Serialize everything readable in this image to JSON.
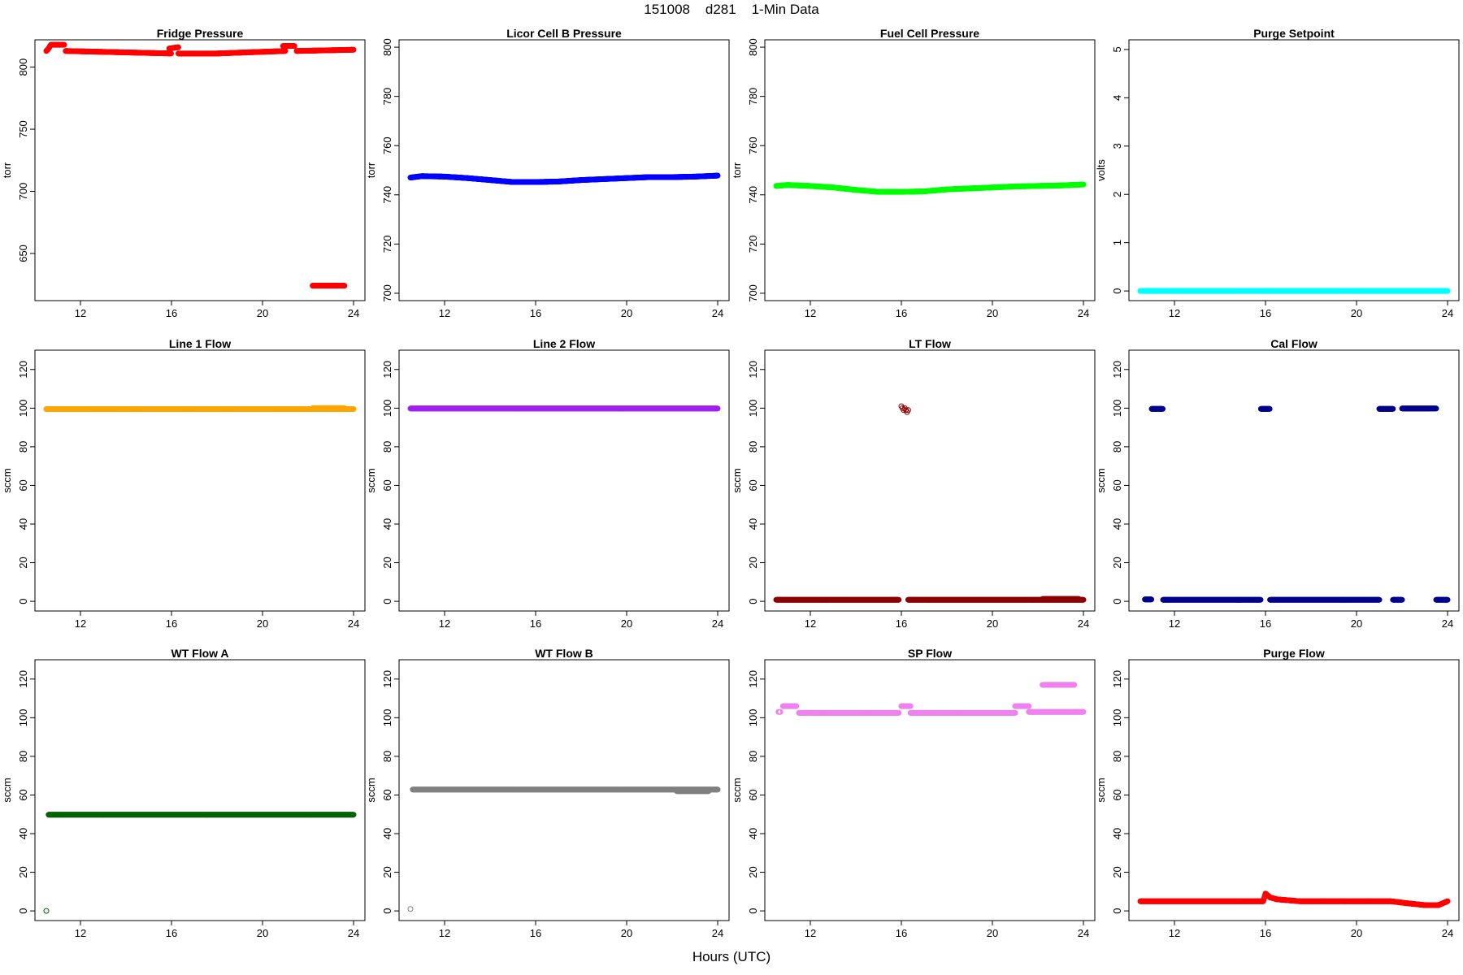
{
  "figure": {
    "title": "151008    d281    1-Min Data",
    "xlabel": "Hours (UTC)"
  },
  "chart_data": [
    {
      "type": "scatter",
      "title": "Fridge Pressure",
      "ylabel": "torr",
      "color": "#ff0000",
      "xlim": [
        10,
        24.5
      ],
      "ylim": [
        612,
        822
      ],
      "xticks": [
        12,
        16,
        20,
        24
      ],
      "yticks": [
        650,
        700,
        750,
        800
      ],
      "segments": [
        {
          "x": [
            10.5,
            10.6,
            10.7,
            10.8,
            10.9,
            11.0,
            11.1,
            11.2,
            11.3
          ],
          "y": [
            813,
            815,
            818,
            818,
            818,
            818,
            818,
            818,
            818
          ]
        },
        {
          "x": [
            11.35,
            16.0
          ],
          "y": [
            813,
            811
          ]
        },
        {
          "x": [
            15.9,
            16.3
          ],
          "y": [
            815,
            816
          ]
        },
        {
          "x": [
            16.3,
            18.0,
            21.0
          ],
          "y": [
            811,
            811,
            813
          ]
        },
        {
          "x": [
            20.9,
            21.4
          ],
          "y": [
            817,
            817
          ]
        },
        {
          "x": [
            21.5,
            24.0
          ],
          "y": [
            813,
            814
          ]
        },
        {
          "x": [
            22.2,
            23.6
          ],
          "y": [
            624,
            624
          ]
        }
      ]
    },
    {
      "type": "scatter",
      "title": "Licor Cell B Pressure",
      "ylabel": "torr",
      "color": "#0000ff",
      "xlim": [
        10,
        24.5
      ],
      "ylim": [
        697,
        803
      ],
      "xticks": [
        12,
        16,
        20,
        24
      ],
      "yticks": [
        700,
        720,
        740,
        760,
        780,
        800
      ],
      "segments": [
        {
          "x": [
            10.5,
            11.0,
            12.0,
            13.0,
            14.0,
            15.0,
            16.0,
            17.0,
            18.0,
            19.0,
            20.0,
            21.0,
            22.0,
            23.0,
            24.0
          ],
          "y": [
            747.0,
            747.6,
            747.4,
            746.8,
            746.0,
            745.2,
            745.2,
            745.4,
            746.0,
            746.4,
            746.8,
            747.2,
            747.2,
            747.4,
            747.8
          ]
        }
      ]
    },
    {
      "type": "scatter",
      "title": "Fuel Cell Pressure",
      "ylabel": "torr",
      "color": "#00ff00",
      "xlim": [
        10,
        24.5
      ],
      "ylim": [
        697,
        803
      ],
      "xticks": [
        12,
        16,
        20,
        24
      ],
      "yticks": [
        700,
        720,
        740,
        760,
        780,
        800
      ],
      "segments": [
        {
          "x": [
            10.5,
            11.0,
            12.0,
            13.0,
            14.0,
            15.0,
            16.0,
            17.0,
            18.0,
            19.0,
            20.0,
            21.0,
            22.0,
            23.0,
            24.0
          ],
          "y": [
            743.6,
            744.0,
            743.6,
            743.0,
            742.0,
            741.2,
            741.2,
            741.4,
            742.2,
            742.6,
            743.0,
            743.4,
            743.6,
            743.8,
            744.2
          ]
        }
      ]
    },
    {
      "type": "scatter",
      "title": "Purge Setpoint",
      "ylabel": "volts",
      "color": "#00ffff",
      "xlim": [
        10,
        24.5
      ],
      "ylim": [
        -0.2,
        5.2
      ],
      "xticks": [
        12,
        16,
        20,
        24
      ],
      "yticks": [
        0,
        1,
        2,
        3,
        4,
        5
      ],
      "segments": [
        {
          "x": [
            10.5,
            24.0
          ],
          "y": [
            0,
            0
          ]
        }
      ]
    },
    {
      "type": "scatter",
      "title": "Line 1 Flow",
      "ylabel": "sccm",
      "color": "#ffa500",
      "xlim": [
        10,
        24.5
      ],
      "ylim": [
        -5,
        130
      ],
      "xticks": [
        12,
        16,
        20,
        24
      ],
      "yticks": [
        0,
        20,
        40,
        60,
        80,
        100,
        120
      ],
      "segments": [
        {
          "x": [
            10.5,
            24.0
          ],
          "y": [
            99.5,
            99.5
          ]
        },
        {
          "x": [
            22.2,
            23.6
          ],
          "y": [
            100,
            100
          ]
        }
      ]
    },
    {
      "type": "scatter",
      "title": "Line 2 Flow",
      "ylabel": "sccm",
      "color": "#a020f0",
      "xlim": [
        10,
        24.5
      ],
      "ylim": [
        -5,
        130
      ],
      "xticks": [
        12,
        16,
        20,
        24
      ],
      "yticks": [
        0,
        20,
        40,
        60,
        80,
        100,
        120
      ],
      "segments": [
        {
          "x": [
            10.5,
            24.0
          ],
          "y": [
            99.8,
            99.8
          ]
        }
      ]
    },
    {
      "type": "scatter",
      "title": "LT Flow",
      "ylabel": "sccm",
      "color": "#8b0000",
      "xlim": [
        10,
        24.5
      ],
      "ylim": [
        -5,
        130
      ],
      "xticks": [
        12,
        16,
        20,
        24
      ],
      "yticks": [
        0,
        20,
        40,
        60,
        80,
        100,
        120
      ],
      "segments": [
        {
          "x": [
            10.5,
            15.9
          ],
          "y": [
            0.8,
            0.8
          ]
        },
        {
          "x": [
            16.3,
            24.0
          ],
          "y": [
            0.8,
            0.8
          ]
        },
        {
          "x": [
            22.2,
            23.8
          ],
          "y": [
            1.2,
            1.2
          ]
        }
      ],
      "points": {
        "x": [
          16.0,
          16.05,
          16.1,
          16.15,
          16.2,
          16.25,
          16.3
        ],
        "y": [
          101,
          100,
          99,
          100,
          99,
          98,
          99
        ]
      }
    },
    {
      "type": "scatter",
      "title": "Cal Flow",
      "ylabel": "sccm",
      "color": "#00008b",
      "xlim": [
        10,
        24.5
      ],
      "ylim": [
        -5,
        130
      ],
      "xticks": [
        12,
        16,
        20,
        24
      ],
      "yticks": [
        0,
        20,
        40,
        60,
        80,
        100,
        120
      ],
      "segments": [
        {
          "x": [
            10.7,
            11.0
          ],
          "y": [
            1,
            1
          ]
        },
        {
          "x": [
            11.0,
            11.5
          ],
          "y": [
            99.6,
            99.6
          ]
        },
        {
          "x": [
            11.5,
            15.8
          ],
          "y": [
            0.8,
            0.8
          ]
        },
        {
          "x": [
            15.8,
            16.2
          ],
          "y": [
            99.6,
            99.6
          ]
        },
        {
          "x": [
            16.2,
            21.0
          ],
          "y": [
            0.8,
            0.8
          ]
        },
        {
          "x": [
            21.0,
            21.6
          ],
          "y": [
            99.6,
            99.6
          ]
        },
        {
          "x": [
            21.6,
            22.0
          ],
          "y": [
            0.8,
            0.8
          ]
        },
        {
          "x": [
            22.0,
            23.5
          ],
          "y": [
            99.8,
            99.8
          ]
        },
        {
          "x": [
            23.5,
            24.0
          ],
          "y": [
            0.8,
            0.8
          ]
        }
      ]
    },
    {
      "type": "scatter",
      "title": "WT Flow A",
      "ylabel": "sccm",
      "color": "#006400",
      "xlim": [
        10,
        24.5
      ],
      "ylim": [
        -5,
        130
      ],
      "xticks": [
        12,
        16,
        20,
        24
      ],
      "yticks": [
        0,
        20,
        40,
        60,
        80,
        100,
        120
      ],
      "segments": [
        {
          "x": [
            10.6,
            24.0
          ],
          "y": [
            49.8,
            49.8
          ]
        }
      ],
      "points": {
        "x": [
          10.5
        ],
        "y": [
          0
        ]
      }
    },
    {
      "type": "scatter",
      "title": "WT Flow B",
      "ylabel": "sccm",
      "color": "#808080",
      "xlim": [
        10,
        24.5
      ],
      "ylim": [
        -5,
        130
      ],
      "xticks": [
        12,
        16,
        20,
        24
      ],
      "yticks": [
        0,
        20,
        40,
        60,
        80,
        100,
        120
      ],
      "segments": [
        {
          "x": [
            10.6,
            24.0
          ],
          "y": [
            62.8,
            62.8
          ]
        },
        {
          "x": [
            22.2,
            23.6
          ],
          "y": [
            62,
            62
          ]
        }
      ],
      "points": {
        "x": [
          10.5
        ],
        "y": [
          1
        ]
      }
    },
    {
      "type": "scatter",
      "title": "SP Flow",
      "ylabel": "sccm",
      "color": "#ee82ee",
      "xlim": [
        10,
        24.5
      ],
      "ylim": [
        -5,
        130
      ],
      "xticks": [
        12,
        16,
        20,
        24
      ],
      "yticks": [
        0,
        20,
        40,
        60,
        80,
        100,
        120
      ],
      "segments": [
        {
          "x": [
            10.6,
            10.7
          ],
          "y": [
            103,
            103
          ]
        },
        {
          "x": [
            10.8,
            11.4
          ],
          "y": [
            106,
            106
          ]
        },
        {
          "x": [
            11.5,
            15.9
          ],
          "y": [
            102.5,
            102.5
          ]
        },
        {
          "x": [
            16.0,
            16.4
          ],
          "y": [
            106,
            106
          ]
        },
        {
          "x": [
            16.4,
            21.0
          ],
          "y": [
            102.5,
            102.5
          ]
        },
        {
          "x": [
            21.0,
            21.6
          ],
          "y": [
            106,
            106
          ]
        },
        {
          "x": [
            21.6,
            24.0
          ],
          "y": [
            103,
            103
          ]
        },
        {
          "x": [
            22.2,
            23.6
          ],
          "y": [
            117,
            117
          ]
        }
      ]
    },
    {
      "type": "scatter",
      "title": "Purge Flow",
      "ylabel": "sccm",
      "color": "#ff0000",
      "xlim": [
        10,
        24.5
      ],
      "ylim": [
        -5,
        130
      ],
      "xticks": [
        12,
        16,
        20,
        24
      ],
      "yticks": [
        0,
        20,
        40,
        60,
        80,
        100,
        120
      ],
      "segments": [
        {
          "x": [
            10.5,
            11.5,
            12.5,
            13.5,
            14.5,
            15.5,
            15.9,
            16.0,
            16.2,
            16.5,
            17.5,
            18.5,
            19.5,
            20.5,
            21.5,
            22.2,
            23.0,
            23.6,
            24.0
          ],
          "y": [
            5,
            5,
            5,
            5,
            5,
            5,
            5,
            9,
            7,
            6,
            5,
            5,
            5,
            5,
            5,
            4,
            3,
            3,
            5
          ]
        }
      ]
    }
  ]
}
